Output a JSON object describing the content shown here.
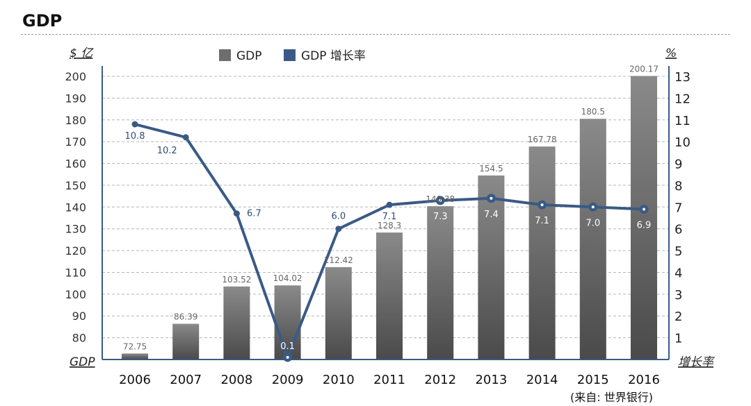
{
  "page": {
    "title": "GDP"
  },
  "chart_data": {
    "type": "bar",
    "categories": [
      "2006",
      "2007",
      "2008",
      "2009",
      "2010",
      "2011",
      "2012",
      "2013",
      "2014",
      "2015",
      "2016"
    ],
    "series": [
      {
        "name": "GDP",
        "type": "bar",
        "axis": "left",
        "values": [
          72.75,
          86.39,
          103.52,
          104.02,
          112.42,
          128.3,
          140.38,
          154.5,
          167.78,
          180.5,
          200.17
        ],
        "labels": [
          "72.75",
          "86.39",
          "103.52",
          "104.02",
          "112.42",
          "128.3",
          "140.38",
          "154.5",
          "167.78",
          "180.5",
          "200.17"
        ],
        "color": "#6e6e6e"
      },
      {
        "name": "GDP 增长率",
        "type": "line",
        "axis": "right",
        "values": [
          10.8,
          10.2,
          6.7,
          0.1,
          6.0,
          7.1,
          7.3,
          7.4,
          7.1,
          7.0,
          6.9
        ],
        "labels": [
          "10.8",
          "10.2",
          "6.7",
          "0.1",
          "6.0",
          "7.1",
          "7.3",
          "7.4",
          "7.1",
          "7.0",
          "6.9"
        ],
        "color": "#3a5a85"
      }
    ],
    "y_left": {
      "unit": "$ 亿",
      "label": "GDP",
      "ylim": [
        70,
        200
      ],
      "ticks": [
        "80",
        "90",
        "100",
        "110",
        "120",
        "130",
        "140",
        "150",
        "160",
        "170",
        "180",
        "190",
        "200"
      ]
    },
    "y_right": {
      "unit": "%",
      "label": "增长率",
      "ylim": [
        0,
        13
      ],
      "ticks": [
        "1",
        "2",
        "3",
        "4",
        "5",
        "6",
        "7",
        "8",
        "9",
        "10",
        "11",
        "12",
        "13"
      ]
    },
    "grid": true,
    "legend": "top",
    "source": "(来自: 世界银行)"
  }
}
